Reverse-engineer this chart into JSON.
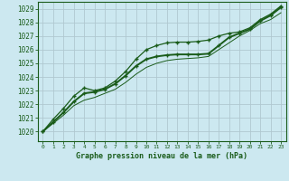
{
  "title": "Graphe pression niveau de la mer (hPa)",
  "background_color": "#cce8f0",
  "grid_color": "#b0c8d0",
  "line_color": "#1a5c1a",
  "xlim": [
    -0.5,
    23.5
  ],
  "ylim": [
    1019.3,
    1029.5
  ],
  "yticks": [
    1020,
    1021,
    1022,
    1023,
    1024,
    1025,
    1026,
    1027,
    1028,
    1029
  ],
  "xticks": [
    0,
    1,
    2,
    3,
    4,
    5,
    6,
    7,
    8,
    9,
    10,
    11,
    12,
    13,
    14,
    15,
    16,
    17,
    18,
    19,
    20,
    21,
    22,
    23
  ],
  "x": [
    0,
    1,
    2,
    3,
    4,
    5,
    6,
    7,
    8,
    9,
    10,
    11,
    12,
    13,
    14,
    15,
    16,
    17,
    18,
    19,
    20,
    21,
    22,
    23
  ],
  "line_main": [
    1020.0,
    1020.7,
    1021.4,
    1022.2,
    1022.8,
    1022.9,
    1023.1,
    1023.5,
    1024.1,
    1024.8,
    1025.3,
    1025.5,
    1025.6,
    1025.65,
    1025.65,
    1025.65,
    1025.7,
    1026.3,
    1026.9,
    1027.2,
    1027.5,
    1028.1,
    1028.5,
    1029.1
  ],
  "line_upper": [
    1020.0,
    1020.9,
    1021.7,
    1022.6,
    1023.2,
    1023.0,
    1023.2,
    1023.7,
    1024.4,
    1025.3,
    1026.0,
    1026.3,
    1026.5,
    1026.55,
    1026.55,
    1026.6,
    1026.7,
    1027.0,
    1027.2,
    1027.3,
    1027.6,
    1028.2,
    1028.6,
    1029.2
  ],
  "line_lower": [
    1020.0,
    1020.6,
    1021.2,
    1021.9,
    1022.3,
    1022.5,
    1022.8,
    1023.1,
    1023.6,
    1024.2,
    1024.7,
    1025.0,
    1025.2,
    1025.3,
    1025.35,
    1025.4,
    1025.5,
    1026.0,
    1026.5,
    1027.0,
    1027.4,
    1027.9,
    1028.2,
    1028.7
  ]
}
